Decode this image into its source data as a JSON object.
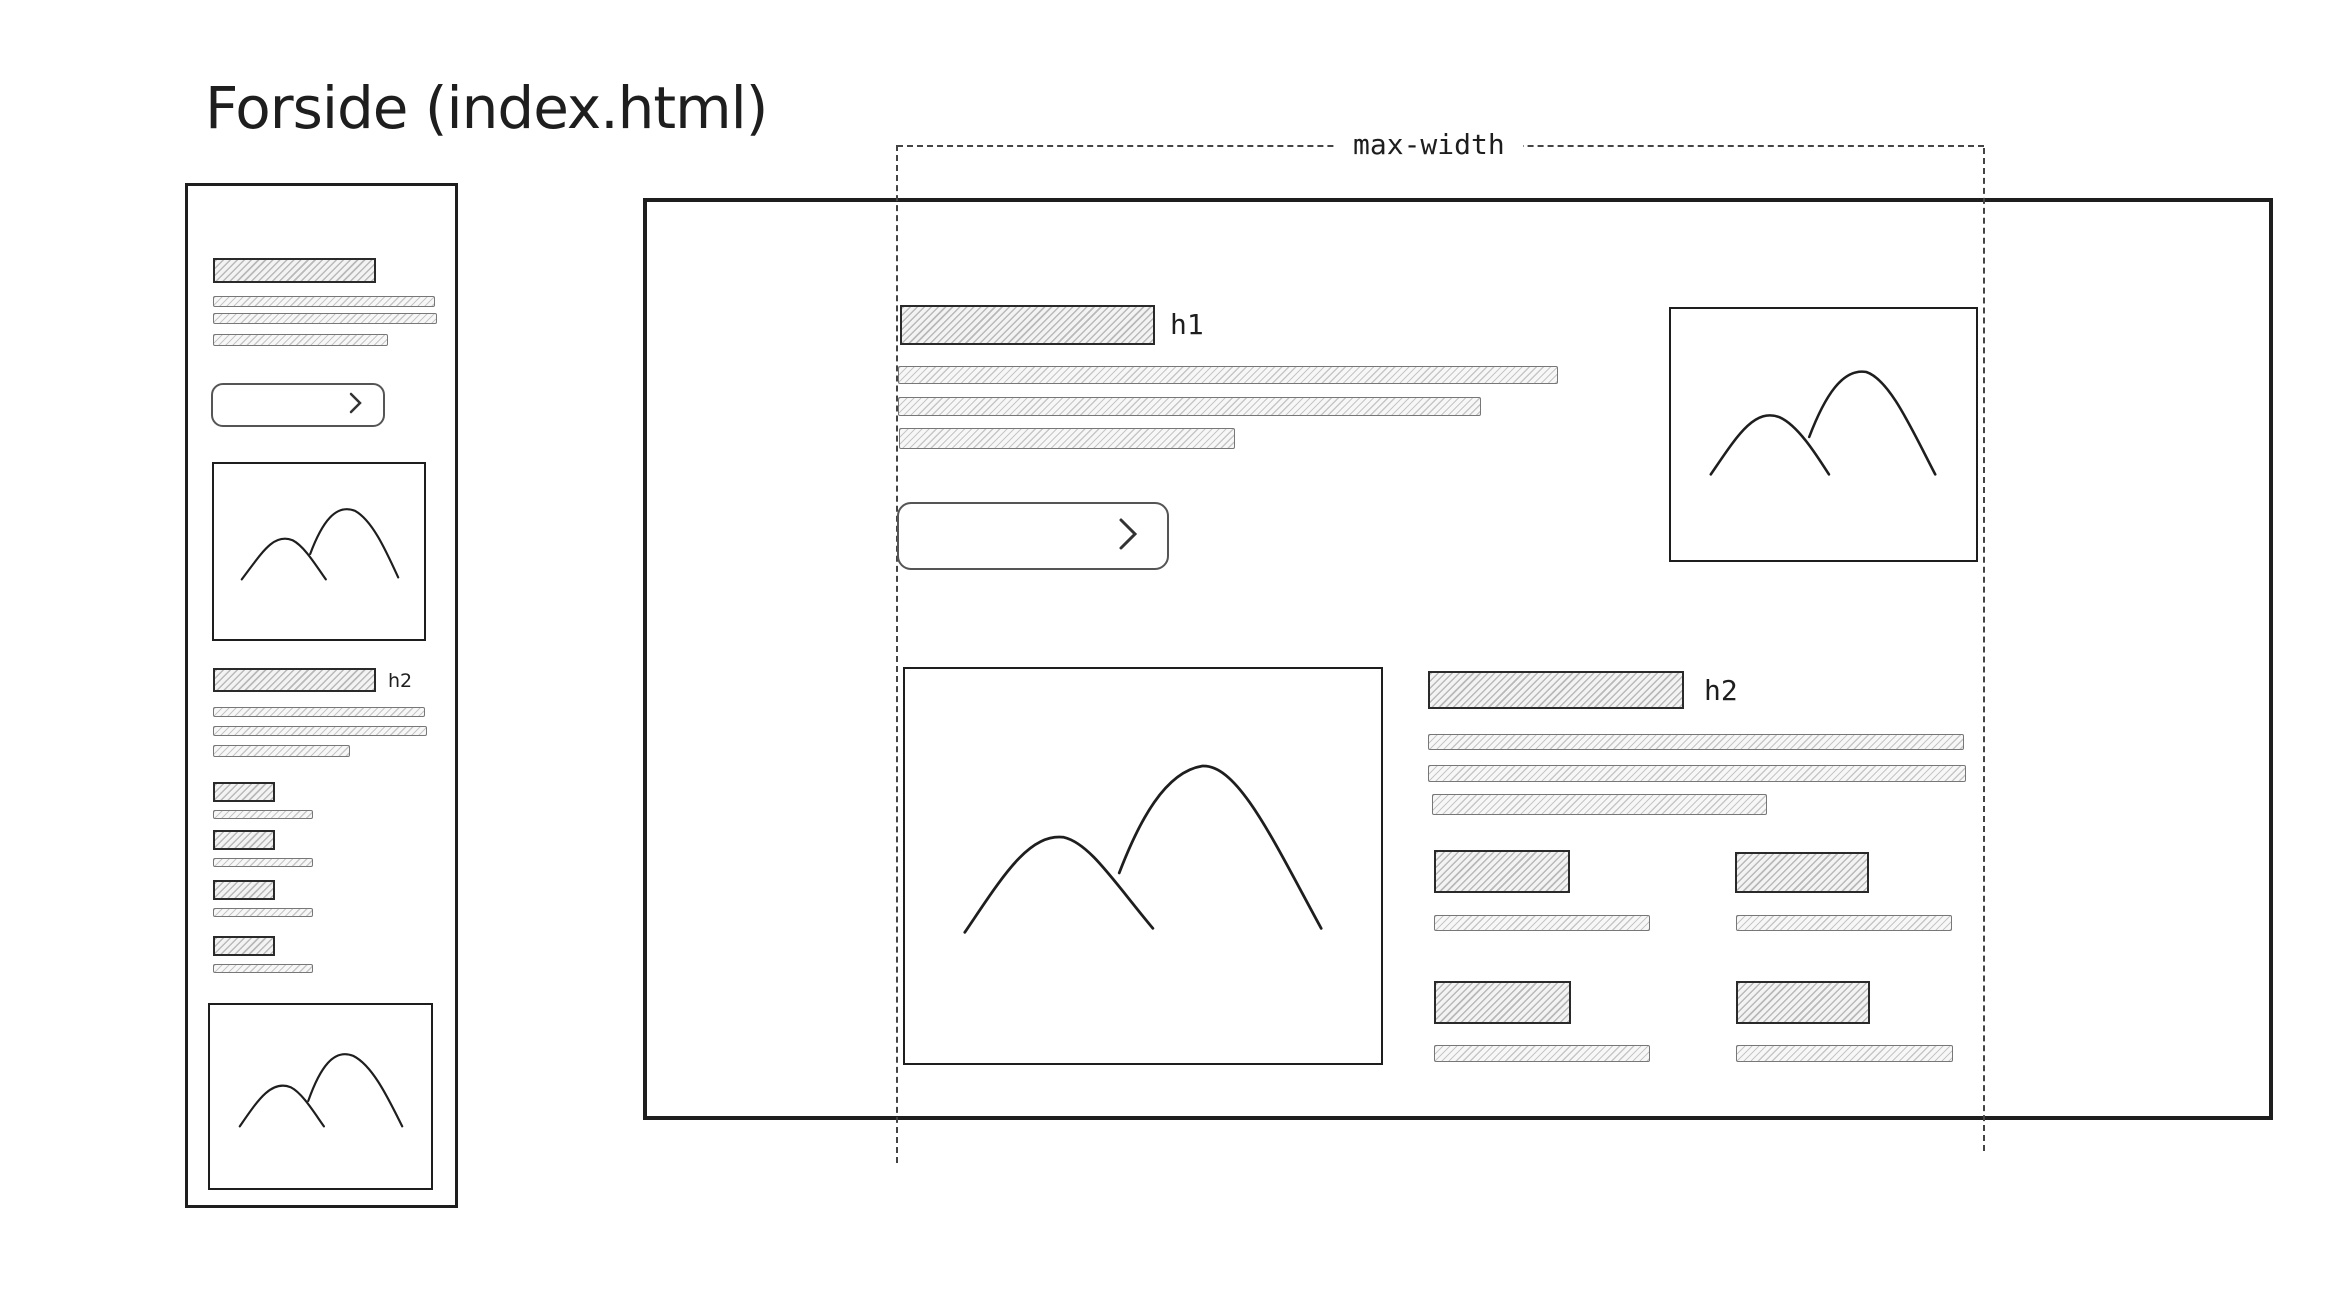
{
  "title": "Forside (index.html)",
  "labels": {
    "max_width": "max-width",
    "h1": "h1",
    "h2": "h2",
    "mobile_h2": "h2"
  },
  "icons": {
    "button_chevron": "chevron-right-icon",
    "image_placeholder": "mountain-image-icon"
  },
  "colors": {
    "stroke": "#1e1e1e",
    "hatch": "#b9b9b9",
    "background": "#ffffff"
  }
}
